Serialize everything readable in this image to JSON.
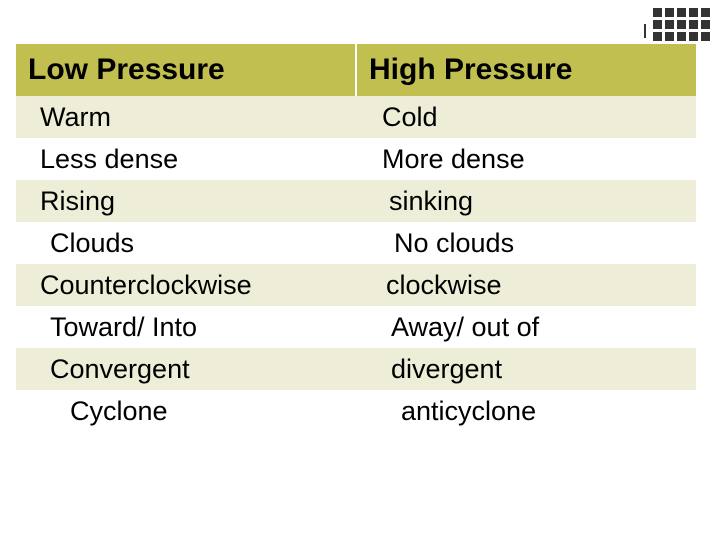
{
  "decor": {
    "dot_color": "#333333",
    "dot_rows": 3,
    "dot_cols": 5
  },
  "table": {
    "header_bg": "#c1bf50",
    "stripe_bg": "#eeeed8",
    "plain_bg": "#ffffff",
    "text_color": "#000000",
    "header": {
      "left": "Low Pressure",
      "right": "High Pressure"
    },
    "rows": [
      {
        "left": "Warm",
        "right": "Cold"
      },
      {
        "left": "Less dense",
        "right": "More dense"
      },
      {
        "left": "Rising",
        "right": "sinking"
      },
      {
        "left": "Clouds",
        "right": "No clouds"
      },
      {
        "left": "Counterclockwise",
        "right": "clockwise"
      },
      {
        "left": "Toward/ Into",
        "right": "Away/ out of"
      },
      {
        "left": "Convergent",
        "right": "divergent"
      },
      {
        "left": "Cyclone",
        "right": "anticyclone"
      }
    ]
  }
}
